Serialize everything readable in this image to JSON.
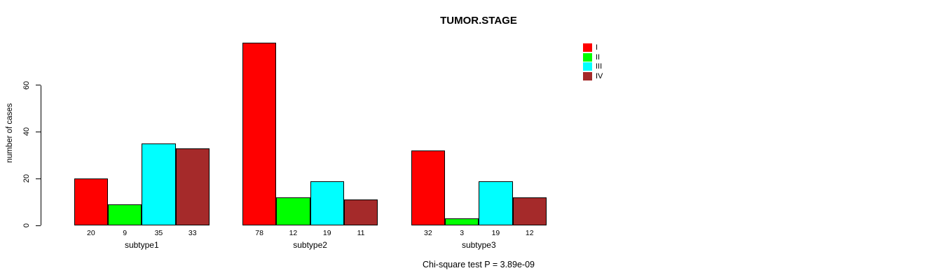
{
  "chart_data": {
    "type": "bar",
    "title": "TUMOR.STAGE",
    "ylabel": "number of cases",
    "xlabel": "",
    "categories": [
      "subtype1",
      "subtype2",
      "subtype3"
    ],
    "series": [
      {
        "name": "I",
        "color": "#ff0000",
        "values": [
          20,
          78,
          32
        ]
      },
      {
        "name": "II",
        "color": "#00ff00",
        "values": [
          9,
          12,
          3
        ]
      },
      {
        "name": "III",
        "color": "#00ffff",
        "values": [
          35,
          19,
          19
        ]
      },
      {
        "name": "IV",
        "color": "#a52a2a",
        "values": [
          33,
          11,
          12
        ]
      }
    ],
    "yticks": [
      0,
      20,
      40,
      60
    ],
    "ylim": [
      0,
      78
    ],
    "grid": false,
    "legend_position": "top-right",
    "bar_value_labels_shown": true,
    "annotation": "Chi-square test P = 3.89e-09"
  }
}
